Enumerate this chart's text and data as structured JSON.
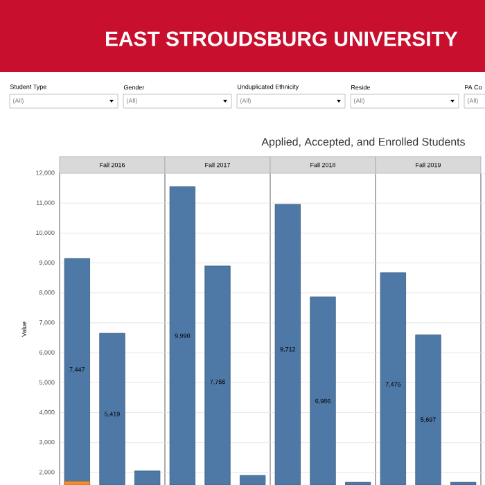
{
  "chart_data": {
    "type": "bar",
    "title": "EAST STROUDSBURG UNIVERSITY",
    "subtitle": "Applied, Accepted, and Enrolled Students",
    "ylabel": "Value",
    "categories": [
      null,
      null,
      null,
      null,
      null,
      null,
      null,
      null,
      null,
      null,
      null,
      null
    ],
    "series": [
      {
        "color": "#4e79a7",
        "values": [
          7447,
          5419,
          470,
          9990,
          7766,
          320,
          9712,
          6986,
          90,
          7476,
          5697,
          90
        ],
        "base": [
          1703,
          1231,
          1580,
          1560,
          1134,
          1580,
          1248,
          880,
          1580,
          1197,
          903,
          1580
        ],
        "value_labels": [
          "7,447",
          "5,419",
          null,
          "9,990",
          "7,766",
          null,
          "9,712",
          "6,986",
          null,
          "7,476",
          "5,697",
          null
        ]
      },
      {
        "color": "#f28e2b",
        "values": [
          123,
          null,
          null,
          null,
          null,
          null,
          null,
          null,
          null,
          null,
          null,
          null
        ],
        "base": [
          1580,
          null,
          null,
          null,
          null,
          null,
          null,
          null,
          null,
          null,
          null,
          null
        ]
      }
    ],
    "ylim": [
      1580,
      12000
    ],
    "yticks": [
      {
        "value": 2000,
        "label": "2,000"
      },
      {
        "value": 3000,
        "label": "3,000"
      },
      {
        "value": 4000,
        "label": "4,000"
      },
      {
        "value": 5000,
        "label": "5,000"
      },
      {
        "value": 6000,
        "label": "6,000"
      },
      {
        "value": 7000,
        "label": "7,000"
      },
      {
        "value": 8000,
        "label": "8,000"
      },
      {
        "value": 9000,
        "label": "9,000"
      },
      {
        "value": 10000,
        "label": "10,000"
      },
      {
        "value": 11000,
        "label": "11,000"
      },
      {
        "value": 12000,
        "label": "12,000"
      }
    ],
    "grid": "y",
    "annotations": [
      "Student Type",
      "(All)",
      "Gender",
      "(All)",
      "Unduplicated Ethnicity",
      "(All)",
      "Reside",
      "(All)",
      "PA Co",
      "(All)",
      "Fall 2016",
      "Fall 2017",
      "Fall 2018",
      "Fall 2019"
    ]
  }
}
